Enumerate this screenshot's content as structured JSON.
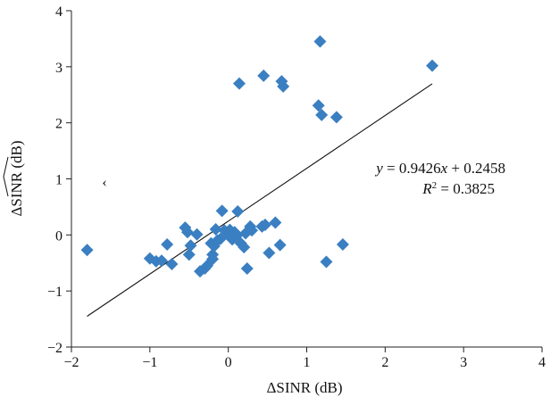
{
  "chart_data": {
    "type": "scatter",
    "xlabel": "ΔSINR (dB)",
    "ylabel": "ΔSINR (dB)",
    "xlim": [
      -2,
      4
    ],
    "ylim": [
      -2,
      4
    ],
    "xticks": [
      -2,
      -1,
      0,
      1,
      2,
      3,
      4
    ],
    "yticks": [
      -2,
      -1,
      0,
      1,
      2,
      3,
      4
    ],
    "xtick_labels": [
      "−2",
      "−1",
      "0",
      "1",
      "2",
      "3",
      "4"
    ],
    "ytick_labels": [
      "−2",
      "−1",
      "0",
      "1",
      "2",
      "3",
      "4"
    ],
    "grid": false,
    "marker_color": "#3a7fc1",
    "marker": "diamond",
    "points": [
      [
        -1.8,
        -0.27
      ],
      [
        -1.0,
        -0.42
      ],
      [
        -0.92,
        -0.47
      ],
      [
        -0.85,
        -0.46
      ],
      [
        -0.78,
        -0.17
      ],
      [
        -0.72,
        -0.52
      ],
      [
        -0.55,
        0.13
      ],
      [
        -0.52,
        0.05
      ],
      [
        -0.5,
        -0.35
      ],
      [
        -0.48,
        -0.19
      ],
      [
        -0.4,
        0.01
      ],
      [
        -0.36,
        -0.65
      ],
      [
        -0.3,
        -0.6
      ],
      [
        -0.27,
        -0.55
      ],
      [
        -0.22,
        -0.15
      ],
      [
        -0.2,
        -0.35
      ],
      [
        -0.2,
        -0.43
      ],
      [
        -0.18,
        -0.2
      ],
      [
        -0.16,
        0.1
      ],
      [
        -0.14,
        -0.1
      ],
      [
        -0.1,
        -0.07
      ],
      [
        -0.08,
        0.43
      ],
      [
        -0.05,
        0.08
      ],
      [
        0.0,
        0.0
      ],
      [
        0.02,
        0.09
      ],
      [
        0.05,
        -0.08
      ],
      [
        0.08,
        0.05
      ],
      [
        0.1,
        -0.02
      ],
      [
        0.12,
        0.42
      ],
      [
        0.14,
        2.7
      ],
      [
        0.16,
        -0.15
      ],
      [
        0.2,
        -0.22
      ],
      [
        0.22,
        0.03
      ],
      [
        0.24,
        -0.6
      ],
      [
        0.28,
        0.15
      ],
      [
        0.3,
        0.08
      ],
      [
        0.43,
        0.15
      ],
      [
        0.45,
        2.84
      ],
      [
        0.47,
        0.18
      ],
      [
        0.52,
        -0.32
      ],
      [
        0.6,
        0.22
      ],
      [
        0.66,
        -0.18
      ],
      [
        0.68,
        2.74
      ],
      [
        0.7,
        2.65
      ],
      [
        1.15,
        2.31
      ],
      [
        1.17,
        3.45
      ],
      [
        1.19,
        2.14
      ],
      [
        1.25,
        -0.48
      ],
      [
        1.38,
        2.1
      ],
      [
        1.46,
        -0.17
      ],
      [
        2.6,
        3.02
      ]
    ],
    "trendline": {
      "x": [
        -1.8,
        2.6
      ]
    },
    "annotation": {
      "equation": {
        "y": "y",
        "eq": " = 0.9426",
        "x": "x",
        "rest": " + 0.2458"
      },
      "r2": {
        "r": "R",
        "sup": "2",
        "rest": " = 0.3825"
      }
    },
    "stray_mark": "‹"
  }
}
